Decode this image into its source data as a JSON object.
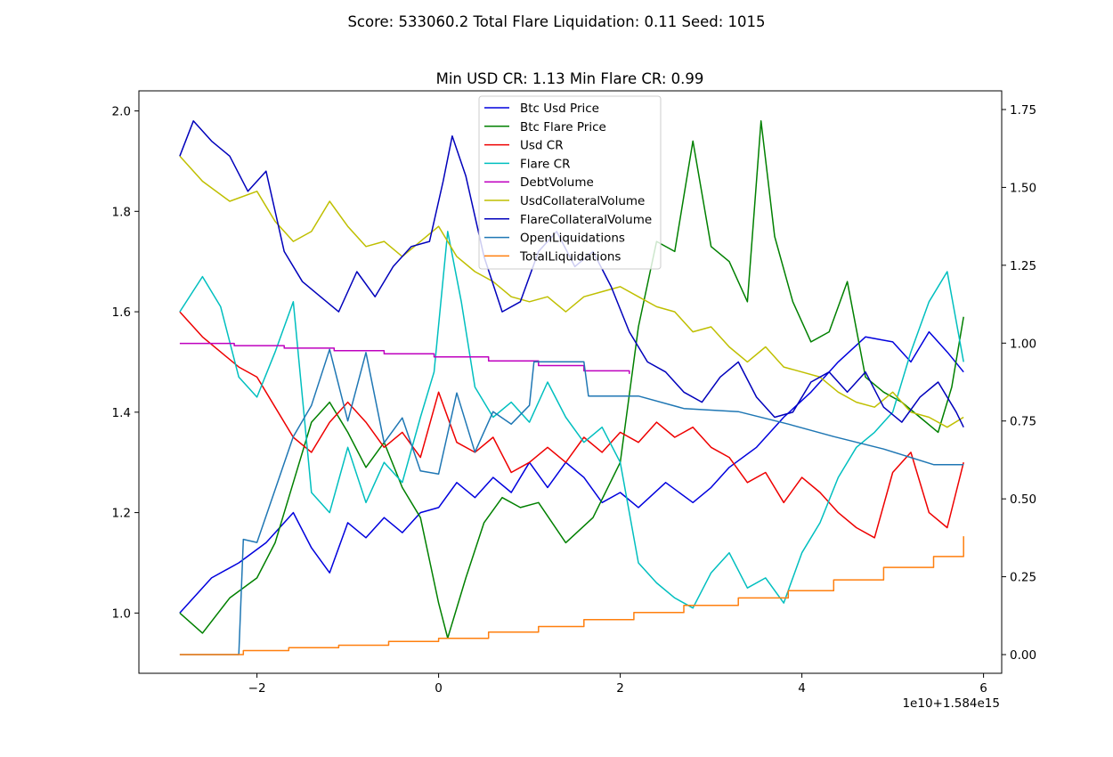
{
  "figure": {
    "suptitle": "Score: 533060.2 Total Flare Liquidation: 0.11 Seed: 1015"
  },
  "chart_data": {
    "type": "line",
    "title": "Min USD CR: 1.13 Min Flare CR: 0.99",
    "x_offset_label": "1e10+1.584e15",
    "xlabel": "",
    "ylabel": "",
    "ylabel_right": "",
    "grid": false,
    "legend_position": "upper center",
    "xlim": [
      -3.3,
      6.2
    ],
    "ylim_left": [
      0.88,
      2.04
    ],
    "ylim_right": [
      -0.06,
      1.81
    ],
    "x_ticks": [
      -2,
      0,
      2,
      4,
      6
    ],
    "x_tick_labels": [
      "−2",
      "0",
      "2",
      "4",
      "6"
    ],
    "y_left_ticks": [
      1.0,
      1.2,
      1.4,
      1.6,
      1.8,
      2.0
    ],
    "y_left_tick_labels": [
      "1.0",
      "1.2",
      "1.4",
      "1.6",
      "1.8",
      "2.0"
    ],
    "y_right_ticks": [
      0.0,
      0.25,
      0.5,
      0.75,
      1.0,
      1.25,
      1.5,
      1.75
    ],
    "y_right_tick_labels": [
      "0.00",
      "0.25",
      "0.50",
      "0.75",
      "1.00",
      "1.25",
      "1.50",
      "1.75"
    ],
    "series": [
      {
        "name": "Btc Usd Price",
        "color": "#0000dd",
        "axis": "left",
        "x": [
          -2.85,
          -2.5,
          -2.2,
          -1.9,
          -1.6,
          -1.4,
          -1.2,
          -1.0,
          -0.8,
          -0.6,
          -0.4,
          -0.2,
          0.0,
          0.2,
          0.4,
          0.6,
          0.8,
          1.0,
          1.2,
          1.4,
          1.6,
          1.8,
          2.0,
          2.2,
          2.5,
          2.8,
          3.0,
          3.2,
          3.5,
          3.8,
          4.1,
          4.4,
          4.7,
          5.0,
          5.2,
          5.4,
          5.6,
          5.78
        ],
        "y": [
          1.0,
          1.07,
          1.1,
          1.14,
          1.2,
          1.13,
          1.08,
          1.18,
          1.15,
          1.19,
          1.16,
          1.2,
          1.21,
          1.26,
          1.23,
          1.27,
          1.24,
          1.3,
          1.25,
          1.3,
          1.27,
          1.22,
          1.24,
          1.21,
          1.26,
          1.22,
          1.25,
          1.29,
          1.33,
          1.39,
          1.44,
          1.5,
          1.55,
          1.54,
          1.5,
          1.56,
          1.52,
          1.48
        ]
      },
      {
        "name": "Btc Flare Price",
        "color": "#008000",
        "axis": "left",
        "x": [
          -2.85,
          -2.6,
          -2.3,
          -2.0,
          -1.8,
          -1.6,
          -1.4,
          -1.2,
          -1.0,
          -0.8,
          -0.6,
          -0.4,
          -0.2,
          0.0,
          0.1,
          0.3,
          0.5,
          0.7,
          0.9,
          1.1,
          1.4,
          1.7,
          2.0,
          2.2,
          2.4,
          2.6,
          2.8,
          3.0,
          3.2,
          3.4,
          3.55,
          3.7,
          3.9,
          4.1,
          4.3,
          4.5,
          4.7,
          4.9,
          5.1,
          5.3,
          5.5,
          5.65,
          5.78
        ],
        "y": [
          1.0,
          0.96,
          1.03,
          1.07,
          1.14,
          1.26,
          1.38,
          1.42,
          1.36,
          1.29,
          1.34,
          1.25,
          1.19,
          1.02,
          0.95,
          1.07,
          1.18,
          1.23,
          1.21,
          1.22,
          1.14,
          1.19,
          1.3,
          1.57,
          1.74,
          1.72,
          1.94,
          1.73,
          1.7,
          1.62,
          1.98,
          1.75,
          1.62,
          1.54,
          1.56,
          1.66,
          1.47,
          1.44,
          1.42,
          1.39,
          1.36,
          1.45,
          1.59
        ]
      },
      {
        "name": "Usd CR",
        "color": "#ee0000",
        "axis": "left",
        "x": [
          -2.85,
          -2.6,
          -2.4,
          -2.2,
          -2.0,
          -1.8,
          -1.6,
          -1.4,
          -1.2,
          -1.0,
          -0.8,
          -0.6,
          -0.4,
          -0.2,
          0.0,
          0.2,
          0.4,
          0.6,
          0.8,
          1.0,
          1.2,
          1.4,
          1.6,
          1.8,
          2.0,
          2.2,
          2.4,
          2.6,
          2.8,
          3.0,
          3.2,
          3.4,
          3.6,
          3.8,
          4.0,
          4.2,
          4.4,
          4.6,
          4.8,
          5.0,
          5.2,
          5.4,
          5.6,
          5.78
        ],
        "y": [
          1.6,
          1.55,
          1.52,
          1.49,
          1.47,
          1.41,
          1.35,
          1.32,
          1.38,
          1.42,
          1.38,
          1.33,
          1.36,
          1.31,
          1.44,
          1.34,
          1.32,
          1.35,
          1.28,
          1.3,
          1.33,
          1.3,
          1.35,
          1.32,
          1.36,
          1.34,
          1.38,
          1.35,
          1.37,
          1.33,
          1.31,
          1.26,
          1.28,
          1.22,
          1.27,
          1.24,
          1.2,
          1.17,
          1.15,
          1.28,
          1.32,
          1.2,
          1.17,
          1.3
        ]
      },
      {
        "name": "Flare CR",
        "color": "#00bfbf",
        "axis": "left",
        "x": [
          -2.85,
          -2.6,
          -2.4,
          -2.2,
          -2.0,
          -1.8,
          -1.6,
          -1.4,
          -1.2,
          -1.0,
          -0.8,
          -0.6,
          -0.4,
          -0.2,
          -0.05,
          0.1,
          0.25,
          0.4,
          0.6,
          0.8,
          1.0,
          1.2,
          1.4,
          1.6,
          1.8,
          2.0,
          2.2,
          2.4,
          2.6,
          2.8,
          3.0,
          3.2,
          3.4,
          3.6,
          3.8,
          4.0,
          4.2,
          4.4,
          4.6,
          4.8,
          5.0,
          5.2,
          5.4,
          5.6,
          5.78
        ],
        "y": [
          1.6,
          1.67,
          1.61,
          1.47,
          1.43,
          1.52,
          1.62,
          1.24,
          1.2,
          1.33,
          1.22,
          1.3,
          1.26,
          1.39,
          1.48,
          1.76,
          1.62,
          1.45,
          1.39,
          1.42,
          1.38,
          1.46,
          1.39,
          1.34,
          1.37,
          1.3,
          1.1,
          1.06,
          1.03,
          1.01,
          1.08,
          1.12,
          1.05,
          1.07,
          1.02,
          1.12,
          1.18,
          1.27,
          1.33,
          1.36,
          1.4,
          1.52,
          1.62,
          1.68,
          1.5
        ]
      },
      {
        "name": "DebtVolume",
        "color": "#bf00bf",
        "axis": "right",
        "step": true,
        "x": [
          -2.85,
          -2.25,
          -1.7,
          -1.15,
          -0.6,
          -0.05,
          0.55,
          1.1,
          1.6,
          2.1
        ],
        "y": [
          0.999,
          0.992,
          0.984,
          0.976,
          0.966,
          0.956,
          0.943,
          0.928,
          0.911,
          0.901
        ]
      },
      {
        "name": "UsdCollateralVolume",
        "color": "#bfbf00",
        "axis": "left",
        "x": [
          -2.85,
          -2.6,
          -2.3,
          -2.0,
          -1.8,
          -1.6,
          -1.4,
          -1.2,
          -1.0,
          -0.8,
          -0.6,
          -0.4,
          -0.2,
          0.0,
          0.2,
          0.4,
          0.6,
          0.8,
          1.0,
          1.2,
          1.4,
          1.6,
          1.8,
          2.0,
          2.2,
          2.4,
          2.6,
          2.8,
          3.0,
          3.2,
          3.4,
          3.6,
          3.8,
          4.0,
          4.2,
          4.4,
          4.6,
          4.8,
          5.0,
          5.2,
          5.4,
          5.6,
          5.78
        ],
        "y": [
          1.91,
          1.86,
          1.82,
          1.84,
          1.78,
          1.74,
          1.76,
          1.82,
          1.77,
          1.73,
          1.74,
          1.71,
          1.74,
          1.77,
          1.71,
          1.68,
          1.66,
          1.63,
          1.62,
          1.63,
          1.6,
          1.63,
          1.64,
          1.65,
          1.63,
          1.61,
          1.6,
          1.56,
          1.57,
          1.53,
          1.5,
          1.53,
          1.49,
          1.48,
          1.47,
          1.44,
          1.42,
          1.41,
          1.44,
          1.4,
          1.39,
          1.37,
          1.39
        ]
      },
      {
        "name": "FlareCollateralVolume",
        "color": "#0000bb",
        "axis": "left",
        "x": [
          -2.85,
          -2.7,
          -2.5,
          -2.3,
          -2.1,
          -1.9,
          -1.7,
          -1.5,
          -1.3,
          -1.1,
          -0.9,
          -0.7,
          -0.5,
          -0.3,
          -0.1,
          0.05,
          0.15,
          0.3,
          0.5,
          0.7,
          0.9,
          1.1,
          1.3,
          1.5,
          1.7,
          1.9,
          2.1,
          2.3,
          2.5,
          2.7,
          2.9,
          3.1,
          3.3,
          3.5,
          3.7,
          3.9,
          4.1,
          4.3,
          4.5,
          4.7,
          4.9,
          5.1,
          5.3,
          5.5,
          5.7,
          5.78
        ],
        "y": [
          1.91,
          1.98,
          1.94,
          1.91,
          1.84,
          1.88,
          1.72,
          1.66,
          1.63,
          1.6,
          1.68,
          1.63,
          1.69,
          1.73,
          1.74,
          1.86,
          1.95,
          1.87,
          1.71,
          1.6,
          1.62,
          1.72,
          1.76,
          1.69,
          1.72,
          1.65,
          1.56,
          1.5,
          1.48,
          1.44,
          1.42,
          1.47,
          1.5,
          1.43,
          1.39,
          1.4,
          1.46,
          1.48,
          1.44,
          1.48,
          1.41,
          1.38,
          1.43,
          1.46,
          1.4,
          1.37
        ]
      },
      {
        "name": "OpenLiquidations",
        "color": "#1f77b4",
        "axis": "right",
        "x": [
          -2.85,
          -2.2,
          -2.15,
          -2.0,
          -1.8,
          -1.6,
          -1.4,
          -1.2,
          -1.0,
          -0.8,
          -0.6,
          -0.4,
          -0.2,
          0.0,
          0.2,
          0.4,
          0.6,
          0.8,
          1.0,
          1.05,
          1.6,
          1.65,
          2.15,
          2.2,
          2.7,
          3.3,
          3.85,
          4.35,
          4.9,
          5.45,
          5.78
        ],
        "y": [
          0.0,
          0.0,
          0.37,
          0.36,
          0.53,
          0.7,
          0.8,
          0.98,
          0.75,
          0.97,
          0.68,
          0.76,
          0.59,
          0.58,
          0.84,
          0.65,
          0.78,
          0.74,
          0.8,
          0.94,
          0.94,
          0.83,
          0.83,
          0.83,
          0.79,
          0.78,
          0.74,
          0.7,
          0.66,
          0.61,
          0.61
        ]
      },
      {
        "name": "TotalLiquidations",
        "color": "#ff7f0e",
        "axis": "right",
        "step": true,
        "x": [
          -2.85,
          -2.15,
          -1.65,
          -1.1,
          -0.55,
          0.0,
          0.55,
          1.1,
          1.6,
          2.15,
          2.7,
          3.3,
          3.85,
          4.35,
          4.9,
          5.45,
          5.78
        ],
        "y": [
          0.0,
          0.013,
          0.022,
          0.03,
          0.042,
          0.052,
          0.072,
          0.09,
          0.112,
          0.135,
          0.158,
          0.182,
          0.205,
          0.24,
          0.28,
          0.315,
          0.38
        ]
      }
    ]
  }
}
